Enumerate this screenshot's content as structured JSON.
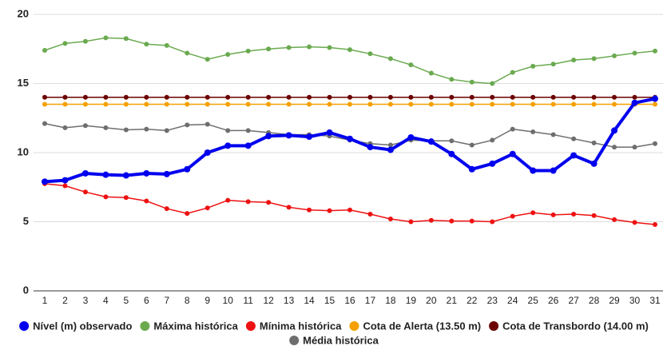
{
  "chart_data": {
    "type": "line",
    "categories": [
      "1",
      "2",
      "3",
      "4",
      "5",
      "6",
      "7",
      "8",
      "9",
      "10",
      "11",
      "12",
      "13",
      "14",
      "15",
      "16",
      "17",
      "18",
      "19",
      "20",
      "21",
      "22",
      "23",
      "24",
      "25",
      "26",
      "27",
      "28",
      "29",
      "30",
      "31"
    ],
    "ylim": [
      0,
      20
    ],
    "yticks": [
      0,
      5,
      10,
      15,
      20
    ],
    "grid": true,
    "legend": "bottom",
    "series": [
      {
        "name": "Nível (m) observado",
        "color": "#0000ee",
        "values": [
          7.9,
          8.0,
          8.5,
          8.4,
          8.35,
          8.5,
          8.45,
          8.8,
          10.0,
          10.5,
          10.5,
          11.2,
          11.25,
          11.15,
          11.45,
          11.0,
          10.4,
          10.2,
          11.1,
          10.8,
          9.9,
          8.8,
          9.2,
          9.9,
          8.7,
          8.7,
          9.8,
          9.2,
          11.6,
          13.6,
          13.9
        ]
      },
      {
        "name": "Máxima histórica",
        "color": "#6aaa4f",
        "values": [
          17.4,
          17.9,
          18.05,
          18.3,
          18.25,
          17.85,
          17.75,
          17.2,
          16.75,
          17.1,
          17.35,
          17.5,
          17.6,
          17.65,
          17.6,
          17.45,
          17.15,
          16.8,
          16.35,
          15.75,
          15.3,
          15.1,
          15.0,
          15.8,
          16.25,
          16.4,
          16.7,
          16.8,
          17.0,
          17.2,
          17.35
        ]
      },
      {
        "name": "Mínima histórica",
        "color": "#ee1111",
        "values": [
          7.75,
          7.6,
          7.15,
          6.8,
          6.75,
          6.5,
          5.95,
          5.6,
          6.0,
          6.55,
          6.45,
          6.4,
          6.05,
          5.85,
          5.8,
          5.85,
          5.55,
          5.2,
          5.0,
          5.1,
          5.05,
          5.05,
          5.0,
          5.4,
          5.65,
          5.5,
          5.55,
          5.45,
          5.15,
          4.95,
          4.8
        ]
      },
      {
        "name": "Cota de Alerta (13.50 m)",
        "color": "#f5a000",
        "values": [
          13.5,
          13.5,
          13.5,
          13.5,
          13.5,
          13.5,
          13.5,
          13.5,
          13.5,
          13.5,
          13.5,
          13.5,
          13.5,
          13.5,
          13.5,
          13.5,
          13.5,
          13.5,
          13.5,
          13.5,
          13.5,
          13.5,
          13.5,
          13.5,
          13.5,
          13.5,
          13.5,
          13.5,
          13.5,
          13.5,
          13.5
        ]
      },
      {
        "name": "Cota de Transbordo (14.00 m)",
        "color": "#6b0000",
        "values": [
          14,
          14,
          14,
          14,
          14,
          14,
          14,
          14,
          14,
          14,
          14,
          14,
          14,
          14,
          14,
          14,
          14,
          14,
          14,
          14,
          14,
          14,
          14,
          14,
          14,
          14,
          14,
          14,
          14,
          14,
          14
        ]
      },
      {
        "name": "Média histórica",
        "color": "#6e6e6e",
        "values": [
          12.1,
          11.8,
          11.95,
          11.8,
          11.65,
          11.7,
          11.6,
          12.0,
          12.05,
          11.6,
          11.6,
          11.45,
          11.3,
          11.3,
          11.2,
          10.9,
          10.65,
          10.55,
          10.9,
          10.85,
          10.85,
          10.55,
          10.9,
          11.7,
          11.5,
          11.3,
          11.0,
          10.7,
          10.4,
          10.4,
          10.65
        ]
      }
    ]
  }
}
